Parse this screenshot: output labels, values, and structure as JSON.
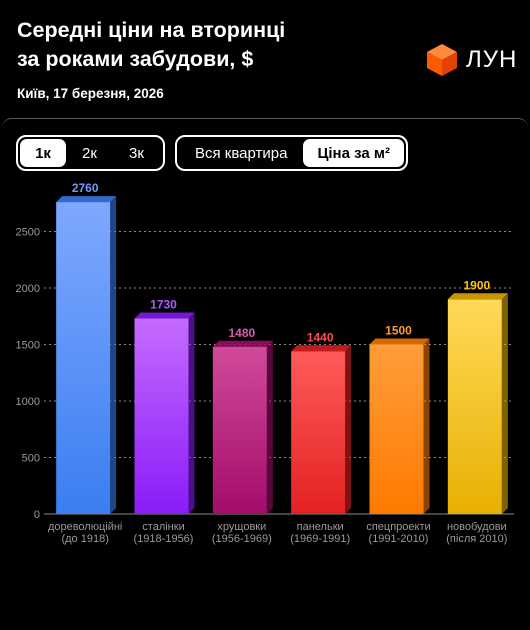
{
  "header": {
    "title_line1": "Середні ціни на вторинці",
    "title_line2": "за роками забудови, $",
    "subtitle": "Київ, 17 березня, 2026",
    "logo_text": "ЛУН"
  },
  "controls": {
    "rooms": [
      {
        "label": "1к",
        "active": true
      },
      {
        "label": "2к",
        "active": false
      },
      {
        "label": "3к",
        "active": false
      }
    ],
    "metric": [
      {
        "label": "Вся квартира",
        "active": false
      },
      {
        "label": "Ціна за м²",
        "active": true
      }
    ]
  },
  "chart_data": {
    "type": "bar",
    "categories": [
      [
        "дореволюційні",
        "(до 1918)"
      ],
      [
        "сталінки",
        "(1918-1956)"
      ],
      [
        "хрущовки",
        "(1956-1969)"
      ],
      [
        "панельки",
        "(1969-1991)"
      ],
      [
        "спецпроекти",
        "(1991-2010)"
      ],
      [
        "новобудови",
        "(після 2010)"
      ]
    ],
    "values": [
      2760,
      1730,
      1480,
      1440,
      1500,
      1900
    ],
    "ylim": [
      0,
      2900
    ],
    "yticks": [
      0,
      500,
      1000,
      1500,
      2000,
      2500
    ],
    "grid": true,
    "title": "",
    "xlabel": "",
    "ylabel": "",
    "colors": [
      {
        "top": "#7fa8ff",
        "bottom": "#3a7ef0",
        "label": "#6f9cff"
      },
      {
        "top": "#c46bff",
        "bottom": "#8a1cf7",
        "label": "#b05cff"
      },
      {
        "top": "#d04a9a",
        "bottom": "#a30c6a",
        "label": "#d85aa6"
      },
      {
        "top": "#ff5a5a",
        "bottom": "#e32222",
        "label": "#ff4a4a"
      },
      {
        "top": "#ff9d3a",
        "bottom": "#ff7a00",
        "label": "#ff9a30"
      },
      {
        "top": "#ffd95a",
        "bottom": "#e8b000",
        "label": "#ffc20e"
      }
    ]
  }
}
